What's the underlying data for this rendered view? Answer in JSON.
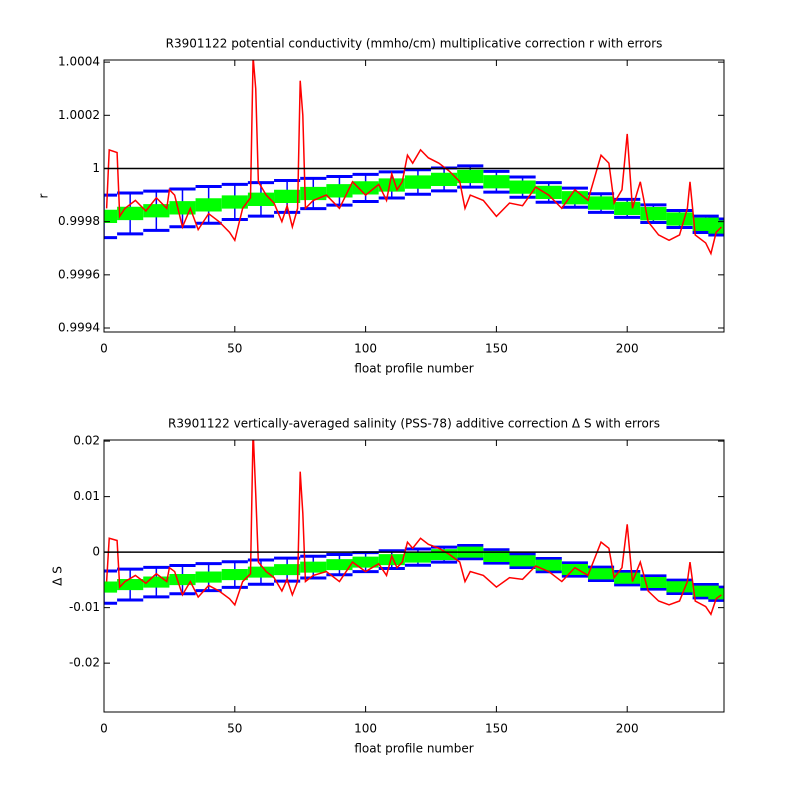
{
  "chart_data": [
    {
      "type": "errorbar-line",
      "title": "R3901122 potential conductivity (mmho/cm) multiplicative correction r with errors",
      "xlabel": "float profile number",
      "ylabel": "r",
      "xlim": [
        0,
        237
      ],
      "xticks": [
        0,
        50,
        100,
        150,
        200
      ],
      "ylim": [
        0.999385,
        1.000408
      ],
      "yticks": [
        1.0004,
        1.0002,
        1,
        0.9998,
        0.9996,
        0.9994
      ],
      "hline": 1,
      "hline_color": "#000000",
      "grid": false,
      "series": [
        {
          "kind": "errorbar",
          "color": "#0000ff",
          "x": [
            0,
            10,
            20,
            30,
            40,
            50,
            60,
            70,
            80,
            90,
            100,
            110,
            120,
            130,
            140,
            150,
            160,
            170,
            180,
            190,
            200,
            210,
            220,
            230,
            236
          ],
          "values": [
            0.99982,
            0.999831,
            0.999841,
            0.999852,
            0.999863,
            0.999874,
            0.999884,
            0.999895,
            0.999906,
            0.999916,
            0.999927,
            0.999938,
            0.999949,
            0.999959,
            0.99997,
            0.99995,
            0.99993,
            0.99991,
            0.99989,
            0.99987,
            0.99985,
            0.99983,
            0.99981,
            0.99979,
            0.99978
          ],
          "errors": [
            8e-05,
            7.7e-05,
            7.4e-05,
            7.1e-05,
            6.9e-05,
            6.6e-05,
            6.3e-05,
            6e-05,
            5.7e-05,
            5.4e-05,
            5.1e-05,
            4.9e-05,
            4.6e-05,
            4.3e-05,
            4e-05,
            3.9e-05,
            3.8e-05,
            3.7e-05,
            3.6e-05,
            3.5e-05,
            3.4e-05,
            3.3e-05,
            3.2e-05,
            3.1e-05,
            3e-05
          ]
        },
        {
          "kind": "errorbar",
          "color": "#00ff00",
          "x": [
            0,
            10,
            20,
            30,
            40,
            50,
            60,
            70,
            80,
            90,
            100,
            110,
            120,
            130,
            140,
            150,
            160,
            170,
            180,
            190,
            200,
            210,
            220,
            230,
            236
          ],
          "values": [
            0.99982,
            0.999831,
            0.999841,
            0.999852,
            0.999863,
            0.999874,
            0.999884,
            0.999895,
            0.999906,
            0.999916,
            0.999927,
            0.999938,
            0.999949,
            0.999959,
            0.99997,
            0.99995,
            0.99993,
            0.99991,
            0.99989,
            0.99987,
            0.99985,
            0.99983,
            0.99981,
            0.99979,
            0.99978
          ],
          "errors": [
            2.5e-05,
            2.5e-05,
            2.5e-05,
            2.5e-05,
            2.5e-05,
            2.5e-05,
            2.5e-05,
            2.5e-05,
            2.5e-05,
            2.5e-05,
            2.5e-05,
            2.5e-05,
            2.5e-05,
            2.5e-05,
            2.5e-05,
            2.5e-05,
            2.5e-05,
            2.5e-05,
            2.5e-05,
            2.5e-05,
            2.5e-05,
            2.5e-05,
            2.5e-05,
            2.5e-05,
            2.5e-05
          ]
        },
        {
          "kind": "line",
          "color": "#ff0000",
          "x": [
            1,
            2,
            5,
            6,
            8,
            12,
            16,
            20,
            24,
            25,
            27,
            30,
            33,
            36,
            40,
            44,
            48,
            50,
            53,
            56,
            57,
            58,
            59,
            62,
            65,
            68,
            70,
            72,
            74,
            75,
            76,
            77,
            80,
            85,
            90,
            95,
            100,
            105,
            108,
            110,
            112,
            114,
            116,
            118,
            121,
            124,
            128,
            132,
            136,
            138,
            140,
            145,
            150,
            155,
            160,
            165,
            170,
            175,
            180,
            185,
            190,
            193,
            195,
            198,
            200,
            202,
            205,
            208,
            212,
            216,
            220,
            223,
            224,
            226,
            230,
            232,
            234,
            236
          ],
          "values": [
            0.99985,
            1.00007,
            1.00006,
            0.99982,
            0.99985,
            0.99988,
            0.99984,
            0.99989,
            0.99985,
            0.99992,
            0.9999,
            0.99978,
            0.99985,
            0.99977,
            0.99983,
            0.9998,
            0.99976,
            0.99973,
            0.99985,
            0.99989,
            1.00042,
            1.0003,
            0.99995,
            0.9999,
            0.99987,
            0.9998,
            0.99986,
            0.99978,
            0.99985,
            1.00033,
            1.0002,
            0.99985,
            0.99988,
            0.9999,
            0.99985,
            0.99995,
            0.9999,
            0.99994,
            0.99988,
            0.99998,
            0.99992,
            0.99995,
            1.00005,
            1.00002,
            1.00007,
            1.00004,
            1.00002,
            0.99999,
            0.99995,
            0.99985,
            0.9999,
            0.99988,
            0.99982,
            0.99987,
            0.99986,
            0.99993,
            0.9999,
            0.99985,
            0.99992,
            0.99988,
            1.00005,
            1.00002,
            0.99987,
            0.99992,
            1.00013,
            0.99985,
            0.99995,
            0.9998,
            0.99975,
            0.99973,
            0.99975,
            0.99985,
            0.99995,
            0.99975,
            0.99972,
            0.99968,
            0.99976,
            0.99978
          ]
        }
      ]
    },
    {
      "type": "errorbar-line",
      "title": "R3901122 vertically-averaged salinity (PSS-78) additive correction Δ S with errors",
      "xlabel": "float profile number",
      "ylabel": "Δ S",
      "xlim": [
        0,
        237
      ],
      "xticks": [
        0,
        50,
        100,
        150,
        200
      ],
      "ylim": [
        -0.0288,
        0.0202
      ],
      "yticks": [
        0.02,
        0.01,
        0,
        -0.01,
        -0.02
      ],
      "hline": 0,
      "hline_color": "#000000",
      "grid": false,
      "series": [
        {
          "kind": "errorbar",
          "color": "#0000ff",
          "x": [
            0,
            10,
            20,
            30,
            40,
            50,
            60,
            70,
            80,
            90,
            100,
            110,
            120,
            130,
            140,
            150,
            160,
            170,
            180,
            190,
            200,
            210,
            220,
            230,
            236
          ],
          "values": [
            -0.0063,
            -0.00585,
            -0.0054,
            -0.00495,
            -0.0045,
            -0.00405,
            -0.0036,
            -0.00315,
            -0.0027,
            -0.00225,
            -0.0018,
            -0.00135,
            -0.0009,
            -0.00045,
            0,
            -0.00078,
            -0.00156,
            -0.00234,
            -0.00313,
            -0.00391,
            -0.00469,
            -0.00547,
            -0.00625,
            -0.00703,
            -0.0075
          ],
          "errors": [
            0.0029,
            0.00278,
            0.00266,
            0.00254,
            0.00243,
            0.00231,
            0.00219,
            0.00207,
            0.00195,
            0.00183,
            0.00171,
            0.00159,
            0.00147,
            0.00136,
            0.0012,
            0.0012,
            0.0012,
            0.0012,
            0.0012,
            0.0012,
            0.0012,
            0.0012,
            0.0012,
            0.0012,
            0.0012
          ]
        },
        {
          "kind": "errorbar",
          "color": "#00ff00",
          "x": [
            0,
            10,
            20,
            30,
            40,
            50,
            60,
            70,
            80,
            90,
            100,
            110,
            120,
            130,
            140,
            150,
            160,
            170,
            180,
            190,
            200,
            210,
            220,
            230,
            236
          ],
          "values": [
            -0.0063,
            -0.00585,
            -0.0054,
            -0.00495,
            -0.0045,
            -0.00405,
            -0.0036,
            -0.00315,
            -0.0027,
            -0.00225,
            -0.0018,
            -0.00135,
            -0.0009,
            -0.00045,
            0,
            -0.00078,
            -0.00156,
            -0.00234,
            -0.00313,
            -0.00391,
            -0.00469,
            -0.00547,
            -0.00625,
            -0.00703,
            -0.0075
          ],
          "errors": [
            0.001,
            0.001,
            0.001,
            0.001,
            0.001,
            0.001,
            0.001,
            0.001,
            0.001,
            0.001,
            0.001,
            0.001,
            0.001,
            0.001,
            0.001,
            0.001,
            0.001,
            0.001,
            0.001,
            0.001,
            0.001,
            0.001,
            0.001,
            0.001,
            0.001
          ]
        },
        {
          "kind": "line",
          "color": "#ff0000",
          "x": [
            1,
            2,
            5,
            6,
            8,
            12,
            16,
            20,
            24,
            25,
            27,
            30,
            33,
            36,
            40,
            44,
            48,
            50,
            53,
            56,
            57,
            58,
            59,
            62,
            65,
            68,
            70,
            72,
            74,
            75,
            76,
            77,
            80,
            85,
            90,
            95,
            100,
            105,
            108,
            110,
            112,
            114,
            116,
            118,
            121,
            124,
            128,
            132,
            136,
            138,
            140,
            145,
            150,
            155,
            160,
            165,
            170,
            175,
            180,
            185,
            190,
            193,
            195,
            198,
            200,
            202,
            205,
            208,
            212,
            216,
            220,
            223,
            224,
            226,
            230,
            232,
            234,
            236
          ],
          "values": [
            -0.0053,
            0.0025,
            0.0021,
            -0.0063,
            -0.0053,
            -0.0042,
            -0.0056,
            -0.0039,
            -0.0053,
            -0.0028,
            -0.0035,
            -0.0077,
            -0.0053,
            -0.0081,
            -0.006,
            -0.007,
            -0.0084,
            -0.0095,
            -0.0053,
            -0.0039,
            0.022,
            0.0105,
            -0.0018,
            -0.0035,
            -0.0046,
            -0.007,
            -0.0049,
            -0.0077,
            -0.0053,
            0.0145,
            0.007,
            -0.0053,
            -0.0042,
            -0.0035,
            -0.0053,
            -0.0018,
            -0.0035,
            -0.0021,
            -0.0042,
            -0.0007,
            -0.0028,
            -0.0018,
            0.0018,
            0.0007,
            0.0025,
            0.0014,
            0.0007,
            -0.0004,
            -0.0018,
            -0.0053,
            -0.0035,
            -0.0042,
            -0.0063,
            -0.0046,
            -0.0049,
            -0.0025,
            -0.0035,
            -0.0053,
            -0.0028,
            -0.0042,
            0.0018,
            0.0007,
            -0.0046,
            -0.0028,
            0.005,
            -0.0053,
            -0.0018,
            -0.007,
            -0.0088,
            -0.0095,
            -0.0088,
            -0.0053,
            -0.0018,
            -0.0088,
            -0.0098,
            -0.0112,
            -0.0084,
            -0.0077
          ]
        }
      ]
    }
  ]
}
